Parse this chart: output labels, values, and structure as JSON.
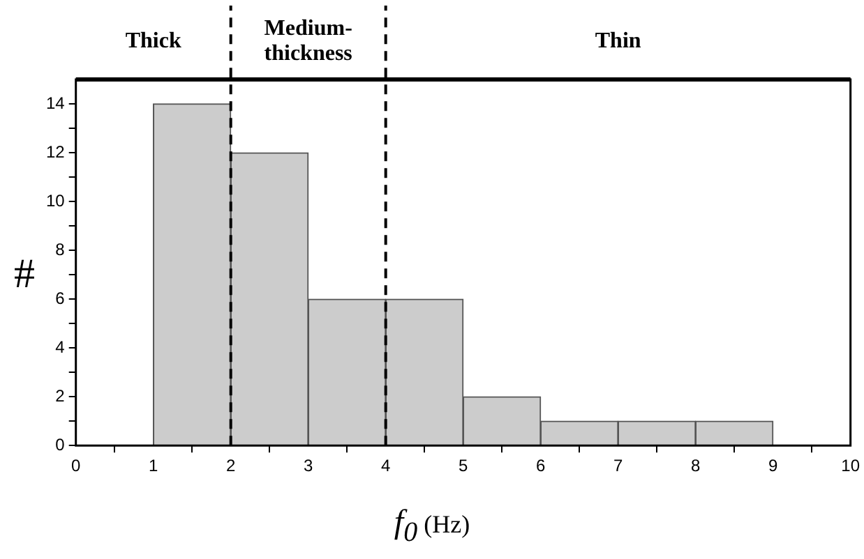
{
  "chart_data": {
    "type": "histogram",
    "xlabel": "f$_{0}$ (Hz)",
    "ylabel": "#",
    "bins": [
      1,
      2,
      3,
      4,
      5,
      6,
      7,
      8,
      9
    ],
    "values": [
      14,
      12,
      6,
      6,
      2,
      1,
      1,
      1
    ],
    "color": "#cccccc",
    "xlim": [
      0,
      10
    ],
    "xticks": [
      0,
      1,
      2,
      3,
      4,
      5,
      6,
      7,
      8,
      9,
      10
    ],
    "ylim": [
      0,
      15
    ],
    "yticks": [
      0,
      {
        "value": 1,
        "label": null
      },
      2,
      {
        "value": 3,
        "label": null
      },
      4,
      {
        "value": 5,
        "label": null
      },
      6,
      {
        "value": 7,
        "label": null
      },
      8,
      {
        "value": 9,
        "label": null
      },
      10,
      {
        "value": 11,
        "label": null
      },
      12,
      {
        "value": 13,
        "label": null
      },
      14
    ],
    "ref_lines": [
      {
        "axis": "x",
        "value": 2,
        "line_style": "dashed",
        "color": "#000000"
      },
      {
        "axis": "x",
        "value": 4,
        "line_style": "dashed",
        "color": "#000000"
      }
    ],
    "annotations": [
      "Thick",
      "Medium-thickness",
      "Thin"
    ],
    "grid": false,
    "legend": false
  }
}
